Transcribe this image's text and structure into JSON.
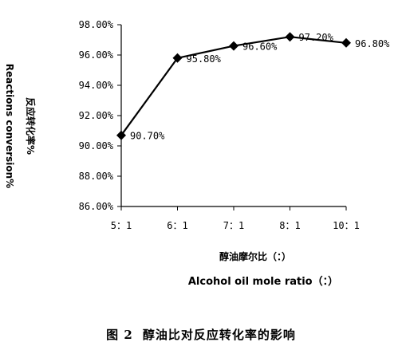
{
  "chart_data": {
    "type": "line",
    "categories": [
      "5：1",
      "6：1",
      "7：1",
      "8：1",
      "10：1"
    ],
    "values": [
      90.7,
      95.8,
      96.6,
      97.2,
      96.8
    ],
    "data_labels": [
      "90.70%",
      "95.80%",
      "96.60%",
      "97.20%",
      "96.80%"
    ],
    "ylim": [
      86,
      98
    ],
    "y_ticks": [
      "86.00%",
      "88.00%",
      "90.00%",
      "92.00%",
      "94.00%",
      "96.00%",
      "98.00%"
    ],
    "ylabel_cn": "反应转化率%",
    "ylabel_en": "Reactions conversion%",
    "xlabel_cn": "醇油摩尔比（：）",
    "xlabel_en": "Alcohol oil mole ratio（：）",
    "grid": false,
    "legend": "none",
    "marker": "diamond",
    "line_color": "#000000"
  },
  "caption": {
    "number": "图 2",
    "text": "醇油比对反应转化率的影响"
  }
}
